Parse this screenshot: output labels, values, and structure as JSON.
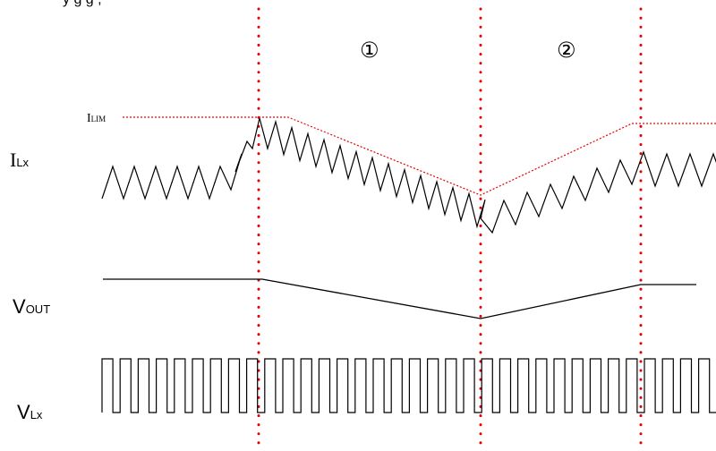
{
  "caption": "y                                    g   g                              ,",
  "labels": {
    "ilim": {
      "main": "I",
      "sub": "LIM"
    },
    "ilx": {
      "main": "I",
      "sub": "Lx"
    },
    "vout": {
      "main": "V",
      "sub": "OUT"
    },
    "vlx": {
      "main": "V",
      "sub": "Lx"
    }
  },
  "regions": [
    "①",
    "②"
  ],
  "colors": {
    "trace": "#000000",
    "marker": "#e60000",
    "limit": "#e60000"
  }
}
